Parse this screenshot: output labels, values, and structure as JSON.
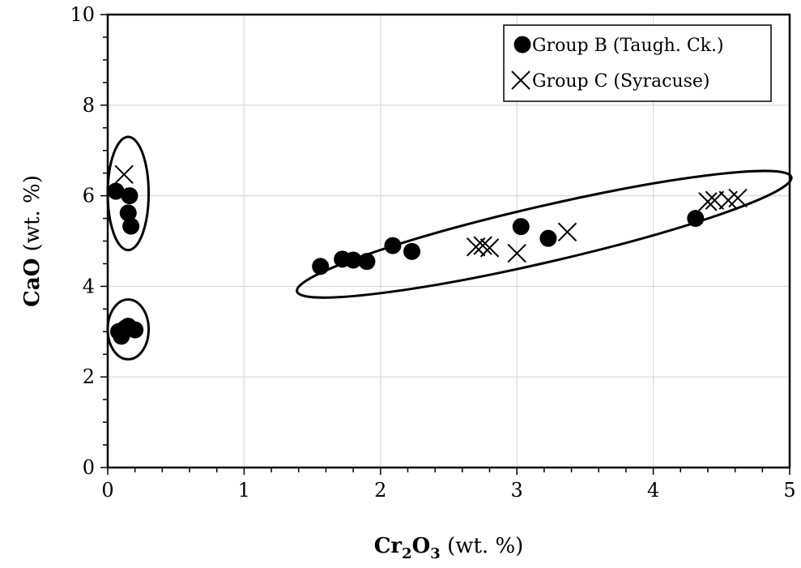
{
  "chart_data": {
    "type": "scatter",
    "xlim": [
      0,
      5
    ],
    "ylim": [
      0,
      10
    ],
    "x_ticks": [
      0,
      1,
      2,
      3,
      4,
      5
    ],
    "y_ticks": [
      0,
      2,
      4,
      6,
      8,
      10
    ],
    "x_tick_labels": [
      "0",
      "1",
      "2",
      "3",
      "4",
      "5"
    ],
    "y_tick_labels": [
      "0",
      "2",
      "4",
      "6",
      "8",
      "10"
    ],
    "xlabel": {
      "main": "Cr",
      "sub1": "2",
      "mid": "O",
      "sub2": "3",
      "rest": " (wt. %)"
    },
    "ylabel": {
      "main": "CaO",
      "rest": " (wt. %)"
    },
    "grid": true,
    "legend_position": "top-right",
    "series": [
      {
        "name": "Group B (Taugh. Ck.)",
        "marker": "filled-circle",
        "color": "#000000",
        "points": [
          [
            0.06,
            6.1
          ],
          [
            0.16,
            6.0
          ],
          [
            0.15,
            5.62
          ],
          [
            0.17,
            5.33
          ],
          [
            0.08,
            3.0
          ],
          [
            0.1,
            2.9
          ],
          [
            0.13,
            3.08
          ],
          [
            0.15,
            3.12
          ],
          [
            0.2,
            3.04
          ],
          [
            1.56,
            4.44
          ],
          [
            1.72,
            4.6
          ],
          [
            1.8,
            4.58
          ],
          [
            1.9,
            4.55
          ],
          [
            2.09,
            4.9
          ],
          [
            2.23,
            4.77
          ],
          [
            3.03,
            5.32
          ],
          [
            3.23,
            5.06
          ],
          [
            4.31,
            5.5
          ]
        ]
      },
      {
        "name": "Group C (Syracuse)",
        "marker": "x",
        "color": "#000000",
        "points": [
          [
            0.12,
            6.47
          ],
          [
            2.7,
            4.87
          ],
          [
            2.75,
            4.9
          ],
          [
            2.8,
            4.85
          ],
          [
            3.0,
            4.73
          ],
          [
            3.37,
            5.2
          ],
          [
            4.4,
            5.87
          ],
          [
            4.45,
            5.9
          ],
          [
            4.55,
            5.9
          ],
          [
            4.62,
            5.95
          ]
        ]
      }
    ],
    "annotations": [
      {
        "type": "ellipse",
        "label": "",
        "center": [
          0.15,
          6.05
        ],
        "radius": [
          0.15,
          1.25
        ],
        "angle_deg": 0
      },
      {
        "type": "ellipse",
        "label": "",
        "center": [
          0.15,
          3.05
        ],
        "radius": [
          0.15,
          0.66
        ],
        "angle_deg": 0
      },
      {
        "type": "ellipse",
        "label": "",
        "center": [
          3.2,
          5.15
        ],
        "radius": [
          1.86,
          0.62
        ],
        "angle_deg": -13
      }
    ]
  }
}
